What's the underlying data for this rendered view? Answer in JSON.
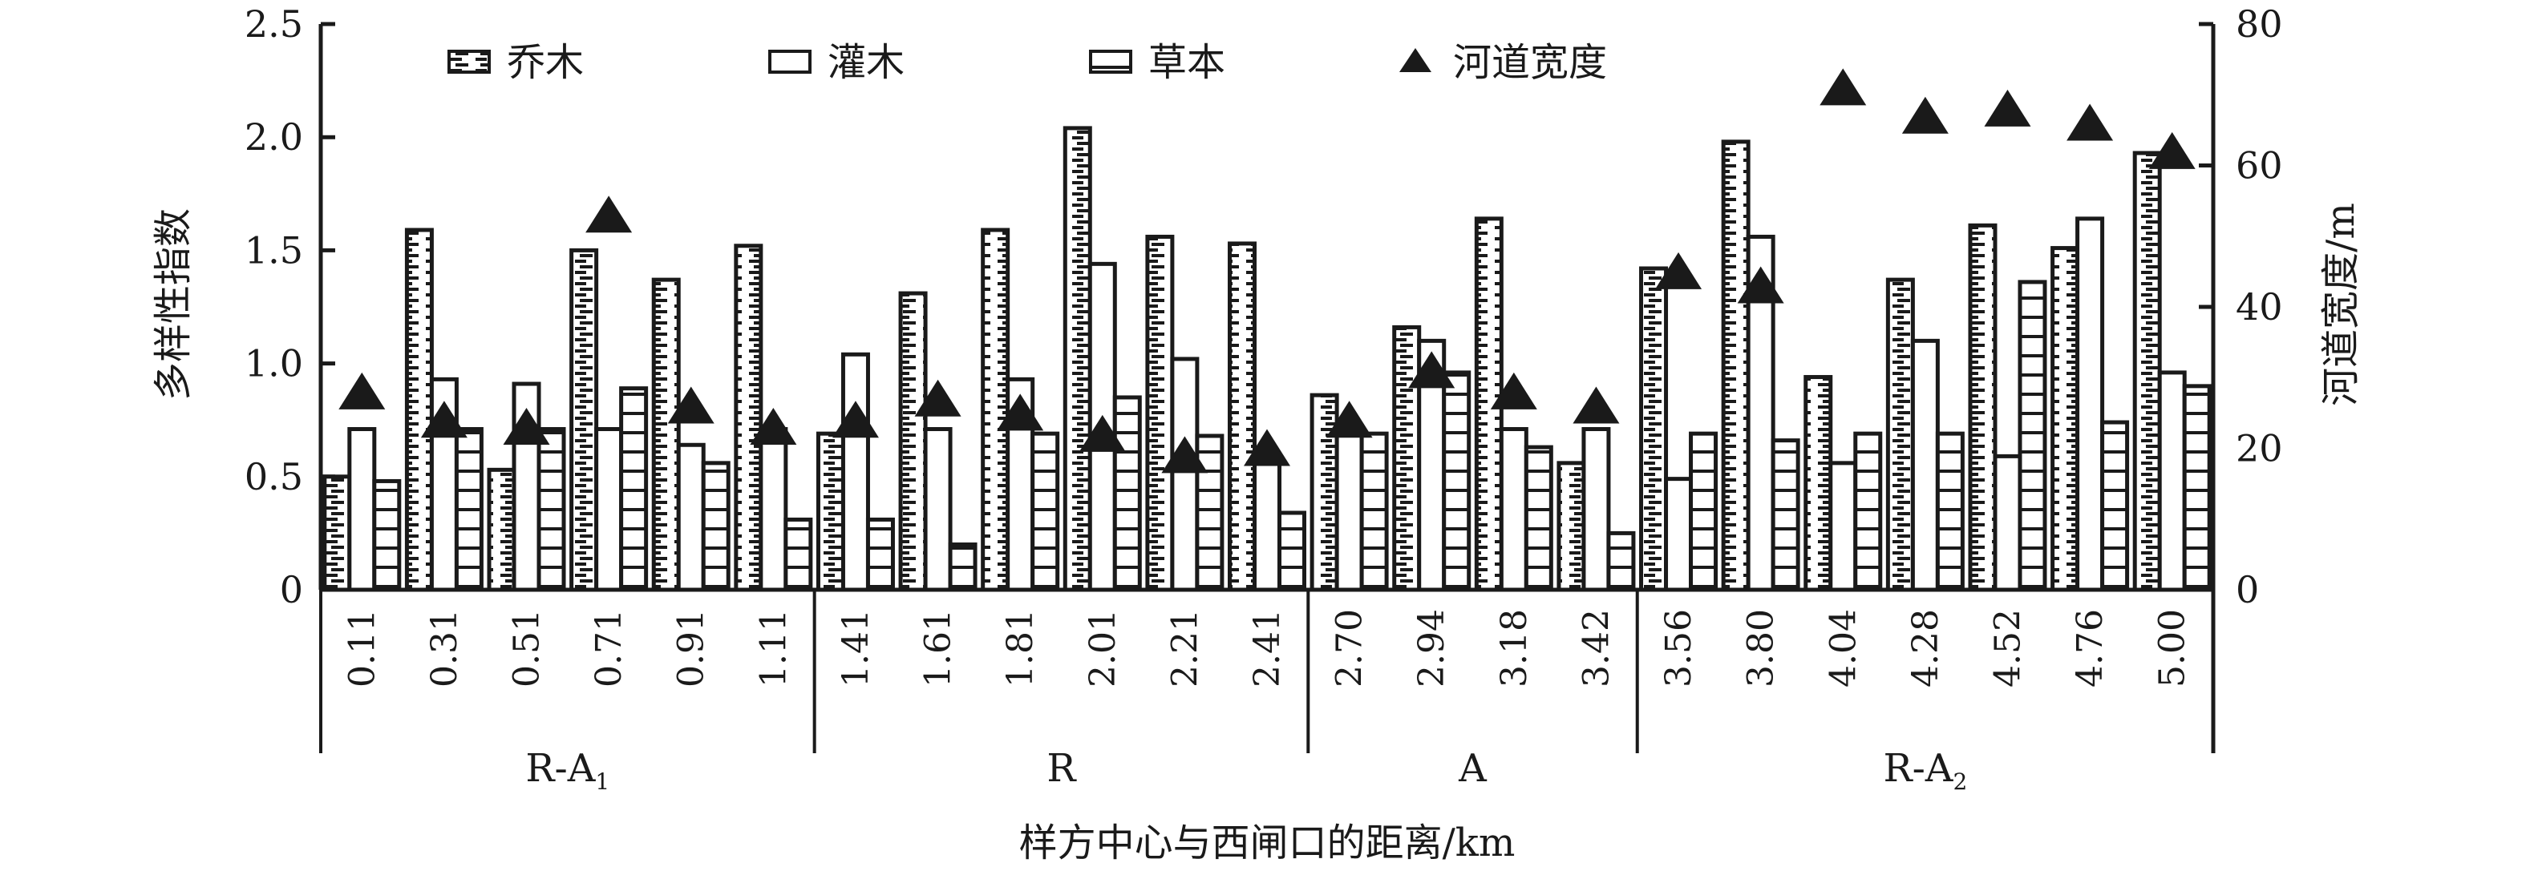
{
  "chart_data": {
    "type": "bar",
    "xlabel": "样方中心与西闸口的距离/km",
    "ylabel": "多样性指数",
    "y2label": "河道宽度/m",
    "ylim": [
      0,
      2.5
    ],
    "y2lim": [
      0,
      80
    ],
    "yticks": [
      "0",
      "0.5",
      "1.0",
      "1.5",
      "2.0",
      "2.5"
    ],
    "y2ticks": [
      "0",
      "20",
      "40",
      "60",
      "80"
    ],
    "grid": false,
    "legend_position": "top",
    "categories": [
      "0.11",
      "0.31",
      "0.51",
      "0.71",
      "0.91",
      "1.11",
      "1.41",
      "1.61",
      "1.81",
      "2.01",
      "2.21",
      "2.41",
      "2.70",
      "2.94",
      "3.18",
      "3.42",
      "3.56",
      "3.80",
      "4.04",
      "4.28",
      "4.52",
      "4.76",
      "5.00"
    ],
    "groups": [
      {
        "label": "R-A",
        "sub": "1",
        "count": 6
      },
      {
        "label": "R",
        "sub": "",
        "count": 6
      },
      {
        "label": "A",
        "sub": "",
        "count": 4
      },
      {
        "label": "R-A",
        "sub": "2",
        "count": 7
      }
    ],
    "series": [
      {
        "name": "乔木",
        "type": "bar",
        "axis": "left",
        "pattern": "brick",
        "values": [
          0.5,
          1.59,
          0.53,
          1.5,
          1.37,
          1.52,
          0.69,
          1.31,
          1.59,
          2.04,
          1.56,
          1.53,
          0.86,
          1.16,
          1.64,
          0.56,
          1.42,
          1.98,
          0.94,
          1.37,
          1.61,
          1.51,
          1.93
        ]
      },
      {
        "name": "灌木",
        "type": "bar",
        "axis": "left",
        "pattern": "empty",
        "values": [
          0.71,
          0.93,
          0.91,
          0.71,
          0.64,
          0.71,
          1.04,
          0.71,
          0.93,
          1.44,
          1.02,
          0.57,
          0.71,
          1.1,
          0.71,
          0.71,
          0.49,
          1.56,
          0.56,
          1.1,
          0.59,
          1.64,
          0.96
        ]
      },
      {
        "name": "草本",
        "type": "bar",
        "axis": "left",
        "pattern": "horizontal",
        "values": [
          0.48,
          0.71,
          0.71,
          0.89,
          0.56,
          0.31,
          0.31,
          0.2,
          0.69,
          0.85,
          0.68,
          0.34,
          0.69,
          0.96,
          0.63,
          0.25,
          0.69,
          0.66,
          0.69,
          0.69,
          1.36,
          0.74,
          0.9
        ]
      },
      {
        "name": "河道宽度",
        "type": "scatter",
        "axis": "right",
        "marker": "triangle",
        "values": [
          28,
          24,
          23,
          53,
          26,
          23,
          24,
          27,
          25,
          22,
          19,
          20,
          24,
          31,
          28,
          26,
          45,
          43,
          71,
          67,
          68,
          66,
          62
        ]
      }
    ],
    "colors": {
      "ink": "#1a1a1a",
      "background": "#ffffff"
    }
  }
}
